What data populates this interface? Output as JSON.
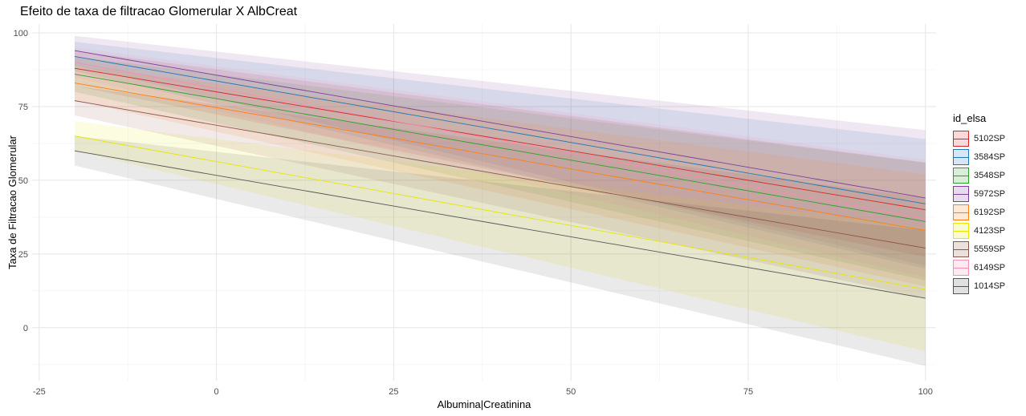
{
  "chart_data": {
    "type": "line",
    "title": "Efeito de taxa de filtracao Glomerular X AlbCreat",
    "xlabel": "Albumina|Creatinina",
    "ylabel": "Taxa de Filtracao Glomerular",
    "xlim": [
      -26,
      101.5
    ],
    "ylim": [
      -18,
      103
    ],
    "x_ticks": [
      -25,
      0,
      25,
      50,
      75,
      100
    ],
    "y_ticks": [
      0,
      25,
      50,
      75,
      100
    ],
    "x_tick_labels": [
      "-25",
      "0",
      "25",
      "50",
      "75",
      "100"
    ],
    "y_tick_labels": [
      "0",
      "25",
      "50",
      "75",
      "100"
    ],
    "grid": true,
    "legend_title": "id_elsa",
    "legend_position": "right",
    "series": [
      {
        "name": "5102SP",
        "color": "#d62728",
        "x": [
          -20,
          100
        ],
        "y": [
          88,
          40
        ],
        "lower": [
          82,
          24
        ],
        "upper": [
          94,
          56
        ]
      },
      {
        "name": "3584SP",
        "color": "#1f77b4",
        "x": [
          -20,
          100
        ],
        "y": [
          92,
          42
        ],
        "lower": [
          87,
          20
        ],
        "upper": [
          97,
          64
        ]
      },
      {
        "name": "3548SP",
        "color": "#2ca02c",
        "x": [
          -20,
          100
        ],
        "y": [
          86,
          36
        ],
        "lower": [
          80,
          16
        ],
        "upper": [
          92,
          56
        ]
      },
      {
        "name": "5972SP",
        "color": "#7b3f98",
        "x": [
          -20,
          100
        ],
        "y": [
          94,
          44
        ],
        "lower": [
          89,
          21
        ],
        "upper": [
          99,
          67
        ]
      },
      {
        "name": "6192SP",
        "color": "#ff7f0e",
        "x": [
          -20,
          100
        ],
        "y": [
          83,
          33
        ],
        "lower": [
          77,
          14
        ],
        "upper": [
          89,
          52
        ]
      },
      {
        "name": "4123SP",
        "color": "#e6e600",
        "x": [
          -20,
          100
        ],
        "y": [
          65,
          13
        ],
        "lower": [
          60,
          -8
        ],
        "upper": [
          70,
          34
        ]
      },
      {
        "name": "5559SP",
        "color": "#8c564b",
        "x": [
          -20,
          100
        ],
        "y": [
          77,
          27
        ],
        "lower": [
          72,
          10
        ],
        "upper": [
          82,
          44
        ]
      },
      {
        "name": "6149SP",
        "color": "#f48fb1",
        "x": [
          -20,
          100
        ],
        "y": [
          90,
          37
        ],
        "lower": [
          85,
          17
        ],
        "upper": [
          95,
          57
        ]
      },
      {
        "name": "1014SP",
        "color": "#555555",
        "x": [
          -20,
          100
        ],
        "y": [
          60,
          10
        ],
        "lower": [
          55,
          -13
        ],
        "upper": [
          65,
          33
        ]
      }
    ]
  }
}
